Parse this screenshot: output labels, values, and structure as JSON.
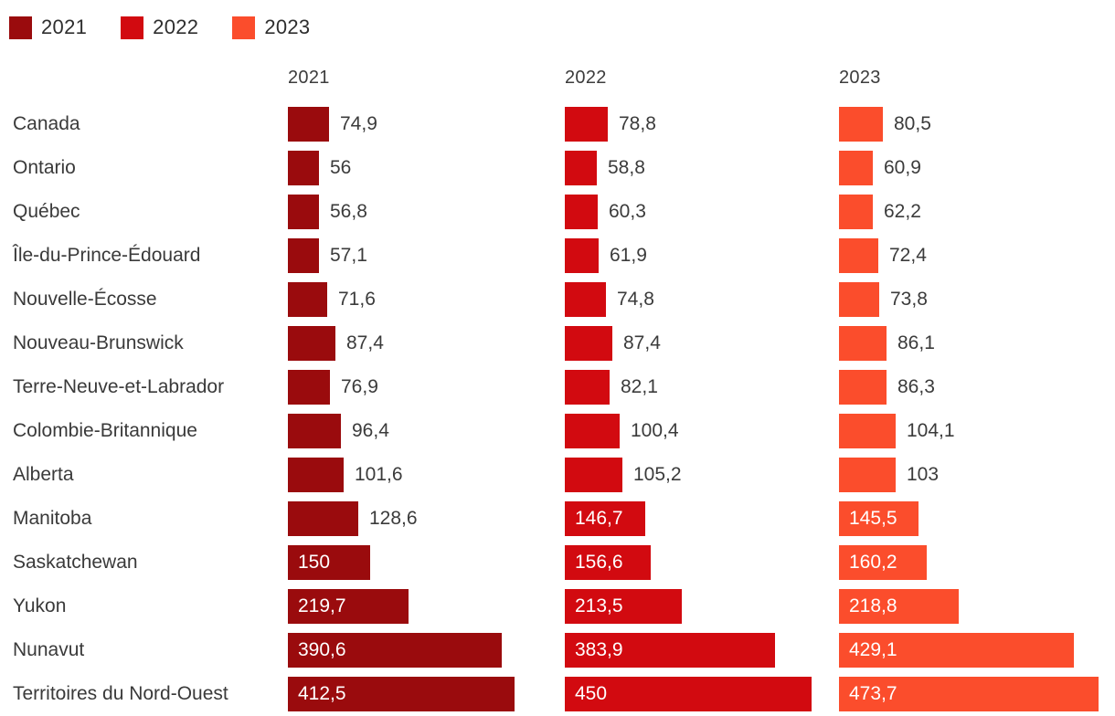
{
  "legend": {
    "items": [
      {
        "label": "2021",
        "color": "#9A0B0D"
      },
      {
        "label": "2022",
        "color": "#D20A10"
      },
      {
        "label": "2023",
        "color": "#FB4D2C"
      }
    ]
  },
  "chart_data": {
    "type": "bar",
    "orientation": "horizontal",
    "layout": "small-multiples-by-year",
    "decimal_separator": ",",
    "categories": [
      "Canada",
      "Ontario",
      "Québec",
      "Île-du-Prince-Édouard",
      "Nouvelle-Écosse",
      "Nouveau-Brunswick",
      "Terre-Neuve-et-Labrador",
      "Colombie-Britannique",
      "Alberta",
      "Manitoba",
      "Saskatchewan",
      "Yukon",
      "Nunavut",
      "Territoires du Nord-Ouest"
    ],
    "series": [
      {
        "name": "2021",
        "color": "#9A0B0D",
        "values": [
          74.9,
          56,
          56.8,
          57.1,
          71.6,
          87.4,
          76.9,
          96.4,
          101.6,
          128.6,
          150,
          219.7,
          390.6,
          412.5
        ]
      },
      {
        "name": "2022",
        "color": "#D20A10",
        "values": [
          78.8,
          58.8,
          60.3,
          61.9,
          74.8,
          87.4,
          82.1,
          100.4,
          105.2,
          146.7,
          156.6,
          213.5,
          383.9,
          450
        ]
      },
      {
        "name": "2023",
        "color": "#FB4D2C",
        "values": [
          80.5,
          60.9,
          62.2,
          72.4,
          73.8,
          86.1,
          86.3,
          104.1,
          103,
          145.5,
          160.2,
          218.8,
          429.1,
          473.7
        ]
      }
    ]
  }
}
